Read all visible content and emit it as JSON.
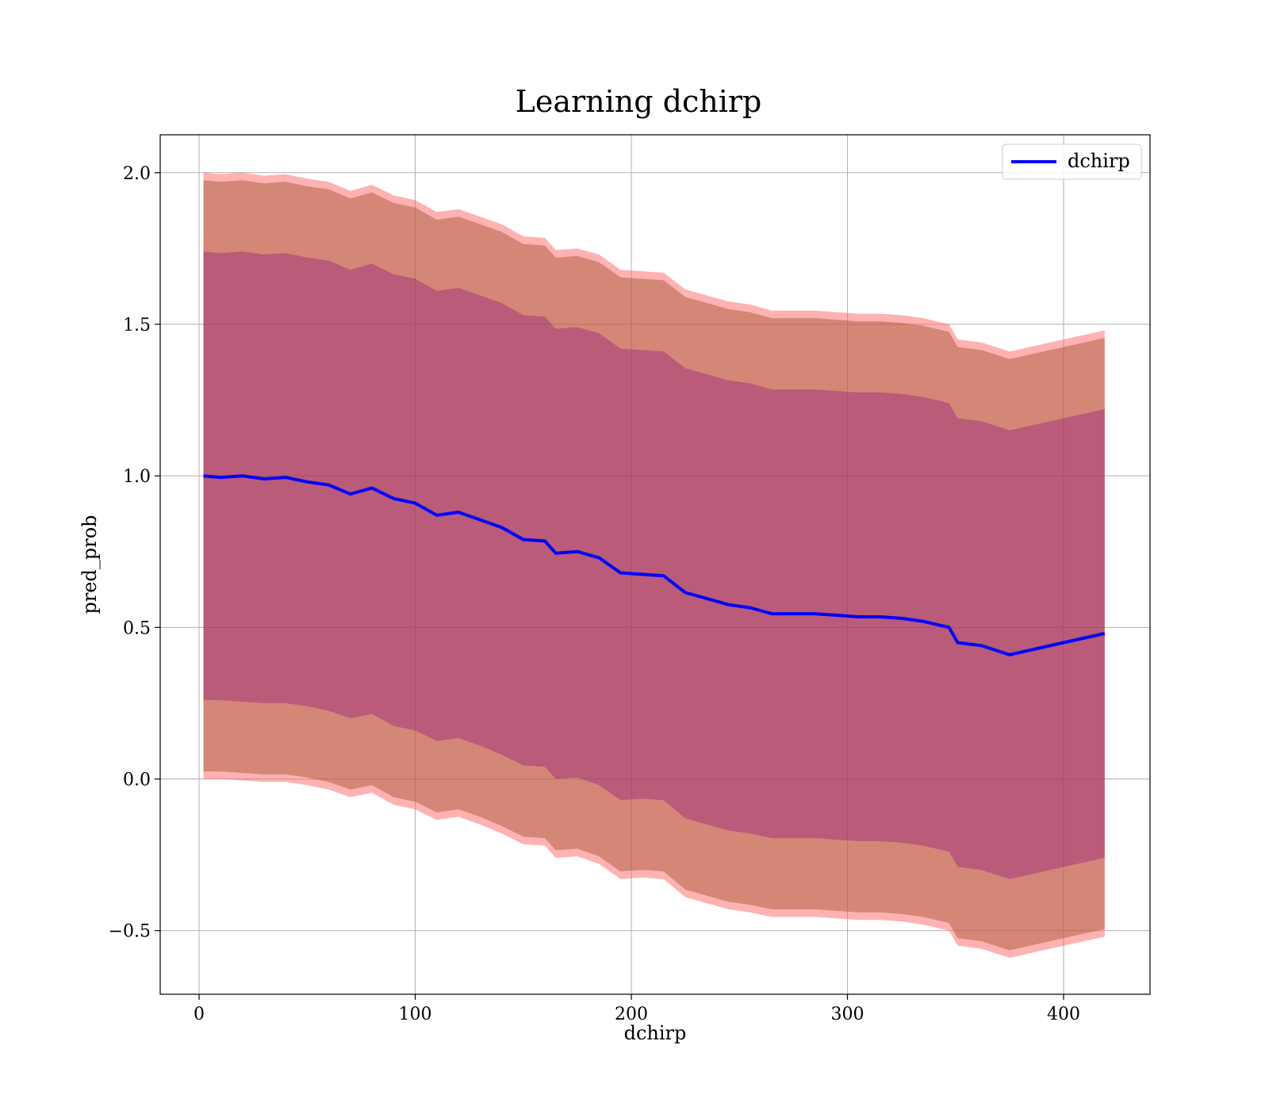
{
  "chart_data": {
    "type": "line",
    "title": "Learning dchirp",
    "xlabel": "dchirp",
    "ylabel": "pred_prob",
    "xlim": [
      -18,
      440
    ],
    "ylim": [
      -0.71,
      2.125
    ],
    "x_ticks": [
      0,
      100,
      200,
      300,
      400
    ],
    "y_ticks": [
      -0.5,
      0.0,
      0.5,
      1.0,
      1.5,
      2.0
    ],
    "x_tick_labels": [
      "0",
      "100",
      "200",
      "300",
      "400"
    ],
    "y_tick_labels": [
      "−0.5",
      "0.0",
      "0.5",
      "1.0",
      "1.5",
      "2.0"
    ],
    "grid": true,
    "legend": {
      "position": "top-right",
      "entries": [
        "dchirp"
      ]
    },
    "colors": {
      "line": "#0000ff",
      "outer_band": "#ff6666",
      "middle_band": "#a0522d",
      "inner_band": "#800080",
      "grid": "#b0b0b0"
    },
    "series": [
      {
        "name": "dchirp",
        "x": [
          2,
          10,
          20,
          30,
          40,
          50,
          60,
          70,
          80,
          90,
          100,
          110,
          120,
          130,
          140,
          150,
          160,
          165,
          175,
          185,
          195,
          205,
          215,
          225,
          235,
          245,
          255,
          265,
          275,
          285,
          295,
          305,
          315,
          325,
          335,
          347,
          351,
          362,
          375,
          400,
          419
        ],
        "y": [
          1.0,
          0.995,
          1.0,
          0.99,
          0.995,
          0.98,
          0.97,
          0.94,
          0.96,
          0.925,
          0.91,
          0.87,
          0.88,
          0.855,
          0.83,
          0.79,
          0.785,
          0.745,
          0.75,
          0.73,
          0.68,
          0.675,
          0.67,
          0.615,
          0.595,
          0.575,
          0.565,
          0.545,
          0.545,
          0.545,
          0.54,
          0.535,
          0.535,
          0.53,
          0.52,
          0.5,
          0.45,
          0.44,
          0.41,
          0.45,
          0.48
        ]
      }
    ],
    "bands": [
      {
        "name": "outer",
        "x": [
          2,
          10,
          20,
          30,
          40,
          50,
          60,
          70,
          80,
          90,
          100,
          110,
          120,
          130,
          140,
          150,
          160,
          165,
          175,
          185,
          195,
          205,
          215,
          225,
          235,
          245,
          255,
          265,
          275,
          285,
          295,
          305,
          315,
          325,
          335,
          347,
          351,
          362,
          375,
          400,
          419
        ],
        "lower": [
          0.0,
          0.0,
          -0.005,
          -0.01,
          -0.01,
          -0.02,
          -0.035,
          -0.06,
          -0.045,
          -0.085,
          -0.1,
          -0.135,
          -0.125,
          -0.15,
          -0.18,
          -0.215,
          -0.22,
          -0.26,
          -0.255,
          -0.28,
          -0.33,
          -0.325,
          -0.33,
          -0.39,
          -0.41,
          -0.43,
          -0.44,
          -0.455,
          -0.455,
          -0.455,
          -0.46,
          -0.465,
          -0.465,
          -0.47,
          -0.48,
          -0.5,
          -0.55,
          -0.56,
          -0.59,
          -0.55,
          -0.52
        ],
        "upper": [
          2.0,
          1.995,
          2.0,
          1.99,
          1.995,
          1.98,
          1.97,
          1.94,
          1.96,
          1.925,
          1.91,
          1.87,
          1.88,
          1.855,
          1.83,
          1.79,
          1.785,
          1.745,
          1.75,
          1.73,
          1.68,
          1.675,
          1.67,
          1.615,
          1.595,
          1.575,
          1.565,
          1.545,
          1.545,
          1.545,
          1.54,
          1.535,
          1.535,
          1.53,
          1.52,
          1.5,
          1.45,
          1.44,
          1.41,
          1.45,
          1.48
        ]
      },
      {
        "name": "middle",
        "x": [
          2,
          10,
          20,
          30,
          40,
          50,
          60,
          70,
          80,
          90,
          100,
          110,
          120,
          130,
          140,
          150,
          160,
          165,
          175,
          185,
          195,
          205,
          215,
          225,
          235,
          245,
          255,
          265,
          275,
          285,
          295,
          305,
          315,
          325,
          335,
          347,
          351,
          362,
          375,
          400,
          419
        ],
        "lower": [
          0.025,
          0.025,
          0.02,
          0.015,
          0.015,
          0.005,
          -0.01,
          -0.035,
          -0.02,
          -0.06,
          -0.075,
          -0.11,
          -0.1,
          -0.125,
          -0.155,
          -0.19,
          -0.195,
          -0.235,
          -0.23,
          -0.255,
          -0.305,
          -0.3,
          -0.305,
          -0.365,
          -0.385,
          -0.405,
          -0.415,
          -0.43,
          -0.43,
          -0.43,
          -0.435,
          -0.44,
          -0.44,
          -0.445,
          -0.455,
          -0.475,
          -0.525,
          -0.535,
          -0.565,
          -0.525,
          -0.495
        ],
        "upper": [
          1.975,
          1.97,
          1.975,
          1.965,
          1.97,
          1.955,
          1.945,
          1.915,
          1.935,
          1.9,
          1.885,
          1.845,
          1.855,
          1.83,
          1.805,
          1.765,
          1.76,
          1.72,
          1.725,
          1.705,
          1.655,
          1.65,
          1.645,
          1.59,
          1.57,
          1.55,
          1.54,
          1.52,
          1.52,
          1.52,
          1.515,
          1.51,
          1.51,
          1.505,
          1.495,
          1.475,
          1.425,
          1.415,
          1.385,
          1.425,
          1.455
        ]
      },
      {
        "name": "inner",
        "x": [
          2,
          10,
          20,
          30,
          40,
          50,
          60,
          70,
          80,
          90,
          100,
          110,
          120,
          130,
          140,
          150,
          160,
          165,
          175,
          185,
          195,
          205,
          215,
          225,
          235,
          245,
          255,
          265,
          275,
          285,
          295,
          305,
          315,
          325,
          335,
          347,
          351,
          362,
          375,
          400,
          419
        ],
        "lower": [
          0.26,
          0.26,
          0.255,
          0.25,
          0.25,
          0.24,
          0.225,
          0.2,
          0.215,
          0.175,
          0.16,
          0.125,
          0.135,
          0.11,
          0.08,
          0.045,
          0.04,
          0.0,
          0.005,
          -0.02,
          -0.07,
          -0.065,
          -0.07,
          -0.13,
          -0.15,
          -0.17,
          -0.18,
          -0.195,
          -0.195,
          -0.195,
          -0.2,
          -0.205,
          -0.205,
          -0.21,
          -0.22,
          -0.24,
          -0.29,
          -0.3,
          -0.33,
          -0.29,
          -0.26
        ],
        "upper": [
          1.74,
          1.735,
          1.74,
          1.73,
          1.735,
          1.72,
          1.71,
          1.68,
          1.7,
          1.665,
          1.65,
          1.61,
          1.62,
          1.595,
          1.57,
          1.53,
          1.525,
          1.485,
          1.49,
          1.47,
          1.42,
          1.415,
          1.41,
          1.355,
          1.335,
          1.315,
          1.305,
          1.285,
          1.285,
          1.285,
          1.28,
          1.275,
          1.275,
          1.27,
          1.26,
          1.24,
          1.19,
          1.18,
          1.15,
          1.19,
          1.22
        ]
      }
    ]
  }
}
